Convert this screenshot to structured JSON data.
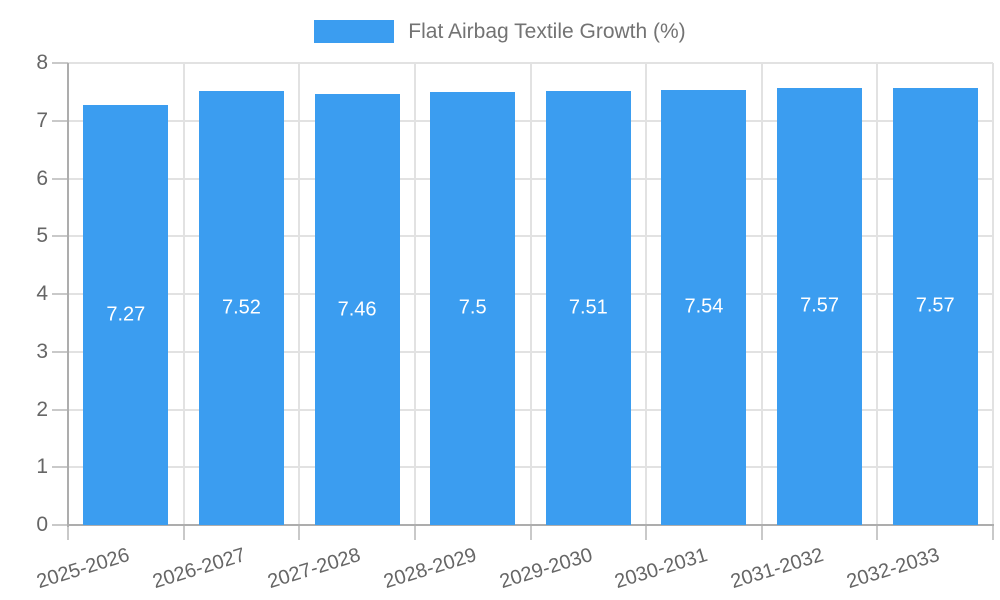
{
  "legend": {
    "label": "Flat Airbag Textile Growth (%)"
  },
  "chart_data": {
    "type": "bar",
    "title": "",
    "series_label": "Flat Airbag Textile Growth (%)",
    "categories": [
      "2025-2026",
      "2026-2027",
      "2027-2028",
      "2028-2029",
      "2029-2030",
      "2030-2031",
      "2031-2032",
      "2032-2033"
    ],
    "values": [
      7.27,
      7.52,
      7.46,
      7.5,
      7.51,
      7.54,
      7.57,
      7.57
    ],
    "value_labels": [
      "7.27",
      "7.52",
      "7.46",
      "7.5",
      "7.51",
      "7.54",
      "7.57",
      "7.57"
    ],
    "xlabel": "",
    "ylabel": "",
    "ylim": [
      0,
      8
    ],
    "yticks": [
      0,
      1,
      2,
      3,
      4,
      5,
      6,
      7,
      8
    ],
    "grid": true,
    "legend_position": "top",
    "colors": {
      "bar": "#3b9df0",
      "grid": "#e2e2e2",
      "axis": "#adadad",
      "tick": "#c9c9c9",
      "tick_label": "#666666",
      "legend_text": "#737373",
      "value_label": "#ffffff"
    }
  }
}
